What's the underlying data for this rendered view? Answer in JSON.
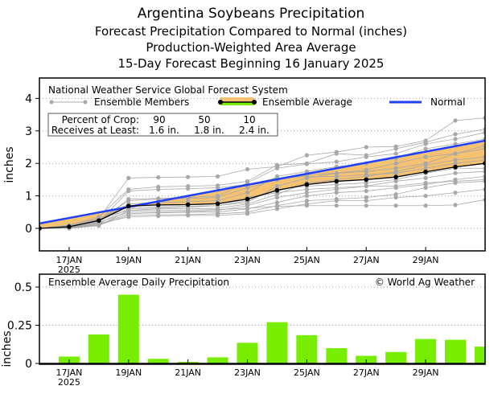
{
  "header": {
    "title": "Argentina Soybeans Precipitation",
    "line2": "Forecast Precipitation Compared to Normal (inches)",
    "line3": "Production-Weighted Area Average",
    "line4": "15-Day Forecast Beginning 16 January 2025"
  },
  "colors": {
    "normal": "#2040ff",
    "band": "#f5c271",
    "member": "#a8a8a8",
    "avg": "#000000",
    "bar": "#77ee00"
  },
  "chart_data": [
    {
      "type": "line",
      "title": "National Weather Service Global Forecast System",
      "ylabel": "inches",
      "ylim": [
        -0.7,
        4.65
      ],
      "yticks": [
        "0",
        "1",
        "2",
        "3",
        "4"
      ],
      "x": [
        16,
        17,
        18,
        19,
        20,
        21,
        22,
        23,
        24,
        25,
        26,
        27,
        28,
        29,
        30,
        31
      ],
      "xticks": [
        {
          "day": 17,
          "label": "17JAN",
          "sub": "2025"
        },
        {
          "day": 19,
          "label": "19JAN"
        },
        {
          "day": 21,
          "label": "21JAN"
        },
        {
          "day": 23,
          "label": "23JAN"
        },
        {
          "day": 25,
          "label": "25JAN"
        },
        {
          "day": 27,
          "label": "27JAN"
        },
        {
          "day": 29,
          "label": "29JAN"
        }
      ],
      "legend": {
        "members": "Ensemble Members",
        "average": "Ensemble Average",
        "normal": "Normal"
      },
      "crop_table": {
        "row1_label": "Percent of Crop:",
        "row1": [
          "90",
          "50",
          "10"
        ],
        "row2_label": "Receives at Least:",
        "row2": [
          "1.6 in.",
          "1.8 in.",
          "2.4 in."
        ]
      },
      "series": [
        {
          "name": "Ensemble Average",
          "values": [
            0,
            0.05,
            0.24,
            0.69,
            0.72,
            0.73,
            0.76,
            0.9,
            1.17,
            1.35,
            1.45,
            1.5,
            1.58,
            1.74,
            1.89,
            2.0
          ]
        },
        {
          "name": "Normal",
          "values": [
            0.15,
            0.32,
            0.49,
            0.66,
            0.83,
            1.0,
            1.17,
            1.34,
            1.51,
            1.68,
            1.85,
            2.02,
            2.19,
            2.36,
            2.53,
            2.7
          ]
        }
      ],
      "members": [
        [
          0,
          0.02,
          0.3,
          1.55,
          1.57,
          1.58,
          1.6,
          1.82,
          1.9,
          2.25,
          2.35,
          2.5,
          2.52,
          2.7,
          3.32,
          3.4
        ],
        [
          0,
          0.1,
          0.35,
          1.2,
          1.28,
          1.3,
          1.32,
          1.45,
          1.95,
          2.0,
          2.3,
          2.25,
          2.45,
          2.65,
          2.9,
          3.05
        ],
        [
          0,
          0.05,
          0.2,
          0.9,
          0.92,
          0.95,
          1.0,
          1.4,
          1.85,
          1.98,
          2.05,
          2.2,
          2.3,
          2.6,
          2.75,
          2.95
        ],
        [
          0,
          0.03,
          0.25,
          0.75,
          0.8,
          0.82,
          0.85,
          1.1,
          1.6,
          1.75,
          1.9,
          2.0,
          2.15,
          2.45,
          2.6,
          2.75
        ],
        [
          0,
          0.0,
          0.15,
          0.6,
          0.62,
          0.65,
          0.7,
          0.8,
          1.3,
          1.55,
          1.7,
          1.8,
          2.0,
          2.2,
          2.3,
          2.45
        ],
        [
          0,
          0.08,
          0.3,
          0.55,
          0.6,
          0.6,
          0.62,
          0.75,
          1.05,
          1.4,
          1.5,
          1.6,
          1.75,
          1.95,
          2.1,
          2.2
        ],
        [
          0,
          0.06,
          0.22,
          0.65,
          0.66,
          0.68,
          0.7,
          0.85,
          1.2,
          1.3,
          1.35,
          1.4,
          1.5,
          1.7,
          1.85,
          1.85
        ],
        [
          0,
          0.04,
          0.18,
          0.5,
          0.5,
          0.52,
          0.55,
          0.7,
          0.95,
          1.1,
          1.2,
          1.3,
          1.45,
          1.55,
          1.7,
          1.75
        ],
        [
          0,
          0.02,
          0.12,
          0.45,
          0.48,
          0.5,
          0.5,
          0.6,
          0.8,
          1.0,
          1.1,
          1.15,
          1.25,
          1.35,
          1.5,
          1.6
        ],
        [
          0,
          0.05,
          0.28,
          0.7,
          0.72,
          0.73,
          0.75,
          0.95,
          1.1,
          1.2,
          1.25,
          1.3,
          1.3,
          1.4,
          1.45,
          1.5
        ],
        [
          0,
          0.01,
          0.1,
          0.4,
          0.42,
          0.42,
          0.45,
          0.5,
          0.7,
          0.85,
          0.9,
          0.95,
          1.05,
          1.25,
          1.4,
          1.45
        ],
        [
          0,
          0.03,
          0.15,
          0.35,
          0.38,
          0.4,
          0.4,
          0.45,
          0.6,
          0.75,
          0.85,
          0.85,
          0.95,
          1.0,
          1.1,
          1.2
        ],
        [
          0,
          0.0,
          0.08,
          0.55,
          0.55,
          0.56,
          0.58,
          0.62,
          0.68,
          0.7,
          0.7,
          0.7,
          0.7,
          0.7,
          0.72,
          0.88
        ],
        [
          0,
          0.07,
          0.26,
          0.85,
          0.9,
          0.92,
          0.95,
          1.25,
          1.5,
          1.65,
          1.7,
          1.75,
          1.85,
          2.0,
          2.3,
          2.55
        ],
        [
          0,
          0.02,
          0.2,
          1.15,
          1.2,
          1.22,
          1.25,
          1.35,
          1.55,
          1.6,
          1.6,
          1.65,
          1.7,
          1.85,
          2.0,
          2.1
        ]
      ]
    },
    {
      "type": "bar",
      "title": "Ensemble Average Daily Precipitation",
      "credit": "© World Ag Weather",
      "ylabel": "inches",
      "ylim": [
        0,
        0.59
      ],
      "yticks": [
        "0",
        "0.25",
        "0.5"
      ],
      "categories": [
        16,
        17,
        18,
        19,
        20,
        21,
        22,
        23,
        24,
        25,
        26,
        27,
        28,
        29,
        30,
        31
      ],
      "values": [
        0.003,
        0.045,
        0.19,
        0.45,
        0.03,
        0.01,
        0.04,
        0.135,
        0.27,
        0.185,
        0.1,
        0.05,
        0.075,
        0.16,
        0.155,
        0.11
      ]
    }
  ]
}
